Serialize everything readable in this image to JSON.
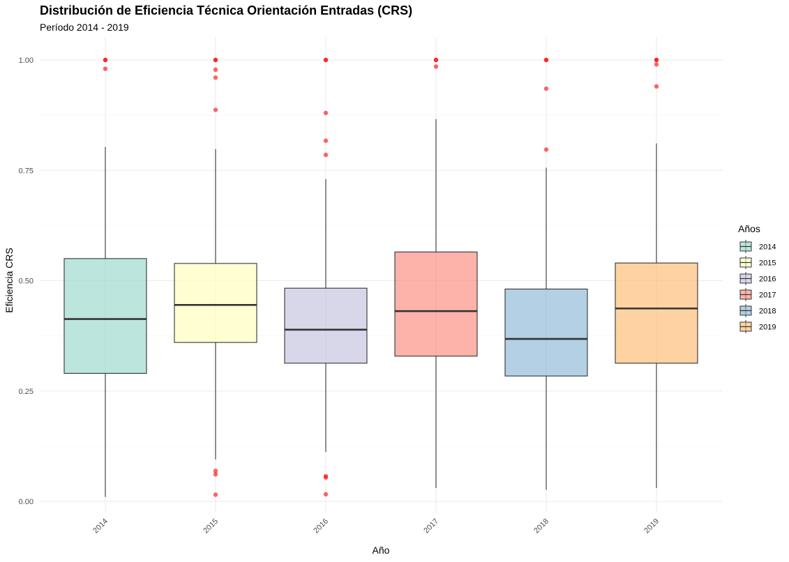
{
  "chart_data": {
    "type": "box",
    "title": "Distribución de Eficiencia Técnica Orientación Entradas (CRS)",
    "subtitle": "Período 2014 - 2019",
    "xlabel": "Año",
    "ylabel": "Eficiencia CRS",
    "ylim": [
      0.0,
      1.0
    ],
    "yticks": [
      "0.00",
      "0.25",
      "0.50",
      "0.75",
      "1.00"
    ],
    "categories": [
      "2014",
      "2015",
      "2016",
      "2017",
      "2018",
      "2019"
    ],
    "grid": true,
    "legend": {
      "title": "Años",
      "position": "right"
    },
    "outlier_color": "#ff0000",
    "series": [
      {
        "name": "2014",
        "color": "#8dd3c7",
        "whisker_low": 0.01,
        "q1": 0.29,
        "median": 0.413,
        "q3": 0.55,
        "whisker_high": 0.803,
        "outliers": [
          0.98,
          1.0,
          1.0
        ]
      },
      {
        "name": "2015",
        "color": "#ffffb3",
        "whisker_low": 0.095,
        "q1": 0.36,
        "median": 0.445,
        "q3": 0.539,
        "whisker_high": 0.798,
        "outliers": [
          0.015,
          0.061,
          0.069,
          0.887,
          0.96,
          0.978,
          1.0,
          1.0
        ]
      },
      {
        "name": "2016",
        "color": "#bebada",
        "whisker_low": 0.112,
        "q1": 0.313,
        "median": 0.389,
        "q3": 0.483,
        "whisker_high": 0.73,
        "outliers": [
          0.016,
          0.054,
          0.057,
          0.785,
          0.817,
          0.88,
          1.0,
          1.0
        ]
      },
      {
        "name": "2017",
        "color": "#fb8072",
        "whisker_low": 0.03,
        "q1": 0.329,
        "median": 0.431,
        "q3": 0.565,
        "whisker_high": 0.866,
        "outliers": [
          0.985,
          1.0,
          1.0
        ]
      },
      {
        "name": "2018",
        "color": "#80b1d3",
        "whisker_low": 0.026,
        "q1": 0.284,
        "median": 0.368,
        "q3": 0.481,
        "whisker_high": 0.756,
        "outliers": [
          0.797,
          0.935,
          1.0,
          1.0
        ]
      },
      {
        "name": "2019",
        "color": "#fdb462",
        "whisker_low": 0.03,
        "q1": 0.313,
        "median": 0.437,
        "q3": 0.54,
        "whisker_high": 0.811,
        "outliers": [
          0.94,
          0.99,
          1.0,
          1.0
        ]
      }
    ]
  }
}
